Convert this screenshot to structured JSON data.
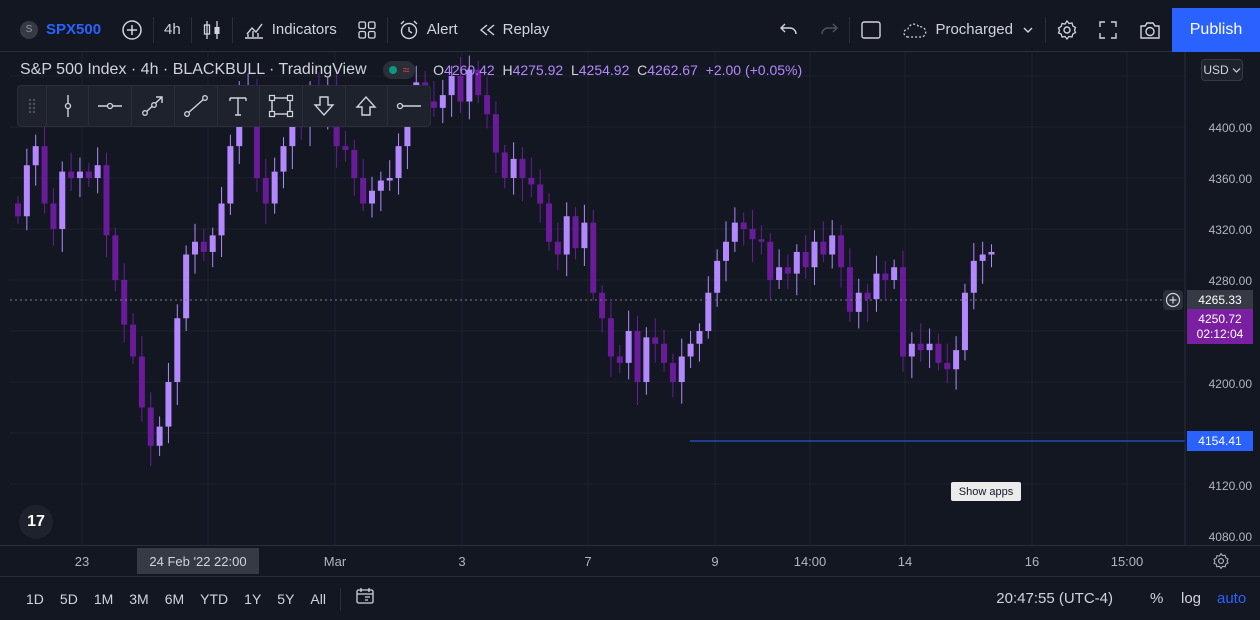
{
  "toolbar": {
    "symbol_badge": "S",
    "symbol": "SPX500",
    "interval": "4h",
    "indicators": "Indicators",
    "alert": "Alert",
    "replay": "Replay",
    "layout_name": "Procharged",
    "publish": "Publish"
  },
  "legend": {
    "title": "S&P 500 Index · 4h · BLACKBULL · TradingView",
    "o_key": "O",
    "o": "4260.42",
    "h_key": "H",
    "h": "4275.92",
    "l_key": "L",
    "l": "4254.92",
    "c_key": "C",
    "c": "4262.67",
    "change": "+2.00 (+0.05%)"
  },
  "currency": "USD",
  "price_axis": {
    "labels": [
      "4400.00",
      "4360.00",
      "4320.00",
      "4280.00",
      "4200.00",
      "4120.00",
      "4080.00"
    ],
    "crosshair_price": "4265.33",
    "last_price": "4250.72",
    "countdown": "02:12:04",
    "hline_price": "4154.41"
  },
  "time_axis": {
    "labels": [
      "23",
      "Mar",
      "3",
      "7",
      "9",
      "14:00",
      "14",
      "16",
      "15:00"
    ],
    "crosshair_date": "24 Feb '22   22:00"
  },
  "tooltip": "Show apps",
  "logo": "17",
  "bottom": {
    "ranges": [
      "1D",
      "5D",
      "1M",
      "3M",
      "6M",
      "YTD",
      "1Y",
      "5Y",
      "All"
    ],
    "clock": "20:47:55 (UTC-4)",
    "percent": "%",
    "log": "log",
    "auto": "auto"
  },
  "colors": {
    "up": "#b388ff",
    "down": "#6a1b9a",
    "accent": "#2962ff",
    "bg": "#131722"
  }
}
